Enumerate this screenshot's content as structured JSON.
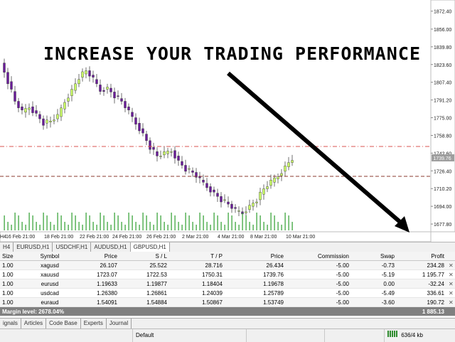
{
  "overlay": {
    "headline": "INCREASE YOUR TRADING PERFORMANCE"
  },
  "chart": {
    "price_labels": [
      "1872.40",
      "1856.00",
      "1839.80",
      "1823.60",
      "1807.40",
      "1791.20",
      "1775.00",
      "1758.80",
      "1742.60",
      "1726.40",
      "1710.20",
      "1694.00",
      "1677.80"
    ],
    "date_labels": [
      "H4",
      "16 Feb 21:00",
      "18 Feb 21:00",
      "22 Feb 21:00",
      "24 Feb 21:00",
      "26 Feb 21:00",
      "2 Mar 21:00",
      "4 Mar 21:00",
      "8 Mar 21:00",
      "10 Mar 21:00"
    ],
    "current_price": "1739.76",
    "y_range": [
      1672,
      1880
    ],
    "colors": {
      "bull": "#ccff66",
      "bear": "#6a1b9a",
      "volume": "#2e9e2e",
      "line_red": "#d9534f",
      "line_brown": "#8b3a2e"
    }
  },
  "chart_tabs": [
    "H4",
    "EURUSD,H1",
    "USDCHF,H1",
    "AUDUSD,H1",
    "GBPUSD,H1"
  ],
  "terminal": {
    "headers": [
      "Size",
      "Symbol",
      "Price",
      "S / L",
      "T / P",
      "Price",
      "Commission",
      "Swap",
      "Profit"
    ],
    "rows": [
      [
        "1.00",
        "xagusd",
        "26.107",
        "25.522",
        "28.716",
        "26.434",
        "-5.00",
        "-0.73",
        "234.28"
      ],
      [
        "1.00",
        "xauusd",
        "1723.07",
        "1722.53",
        "1750.31",
        "1739.76",
        "-5.00",
        "-5.19",
        "1 195.77"
      ],
      [
        "1.00",
        "eurusd",
        "1.19633",
        "1.19877",
        "1.18404",
        "1.19678",
        "-5.00",
        "0.00",
        "-32.24"
      ],
      [
        "1.00",
        "usdcad",
        "1.26380",
        "1.26861",
        "1.24039",
        "1.25789",
        "-5.00",
        "-5.49",
        "336.61"
      ],
      [
        "1.00",
        "euraud",
        "1.54091",
        "1.54884",
        "1.50867",
        "1.53749",
        "-5.00",
        "-3.60",
        "190.72"
      ]
    ],
    "close_glyph": "✕",
    "margin_label": "Margin level: 2678.04%",
    "margin_total": "1 885.13"
  },
  "bottom_tabs": [
    "ignals",
    "Articles",
    "Code Base",
    "Experts",
    "Journal"
  ],
  "status": {
    "profile": "Default",
    "traffic": "636/4 kb"
  }
}
